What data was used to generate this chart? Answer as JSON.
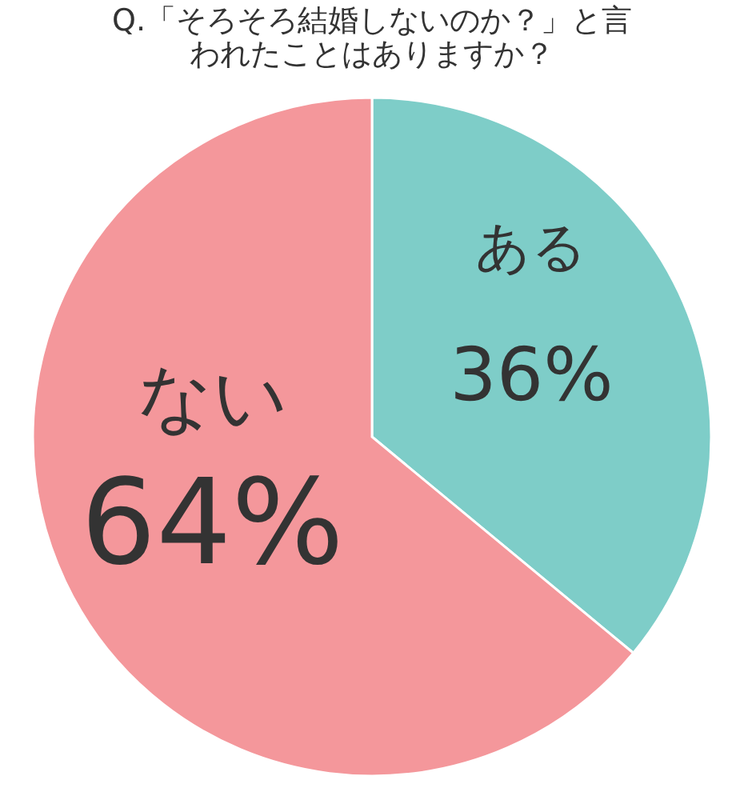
{
  "chart_data": {
    "type": "pie",
    "title": "Q.「そろそろ結婚しないのか？」と言われたことはありますか？",
    "categories": [
      "ある",
      "ない"
    ],
    "values": [
      36,
      64
    ],
    "colors": [
      "#7ecdc8",
      "#f4979b"
    ],
    "value_labels": [
      "36%",
      "64%"
    ]
  }
}
